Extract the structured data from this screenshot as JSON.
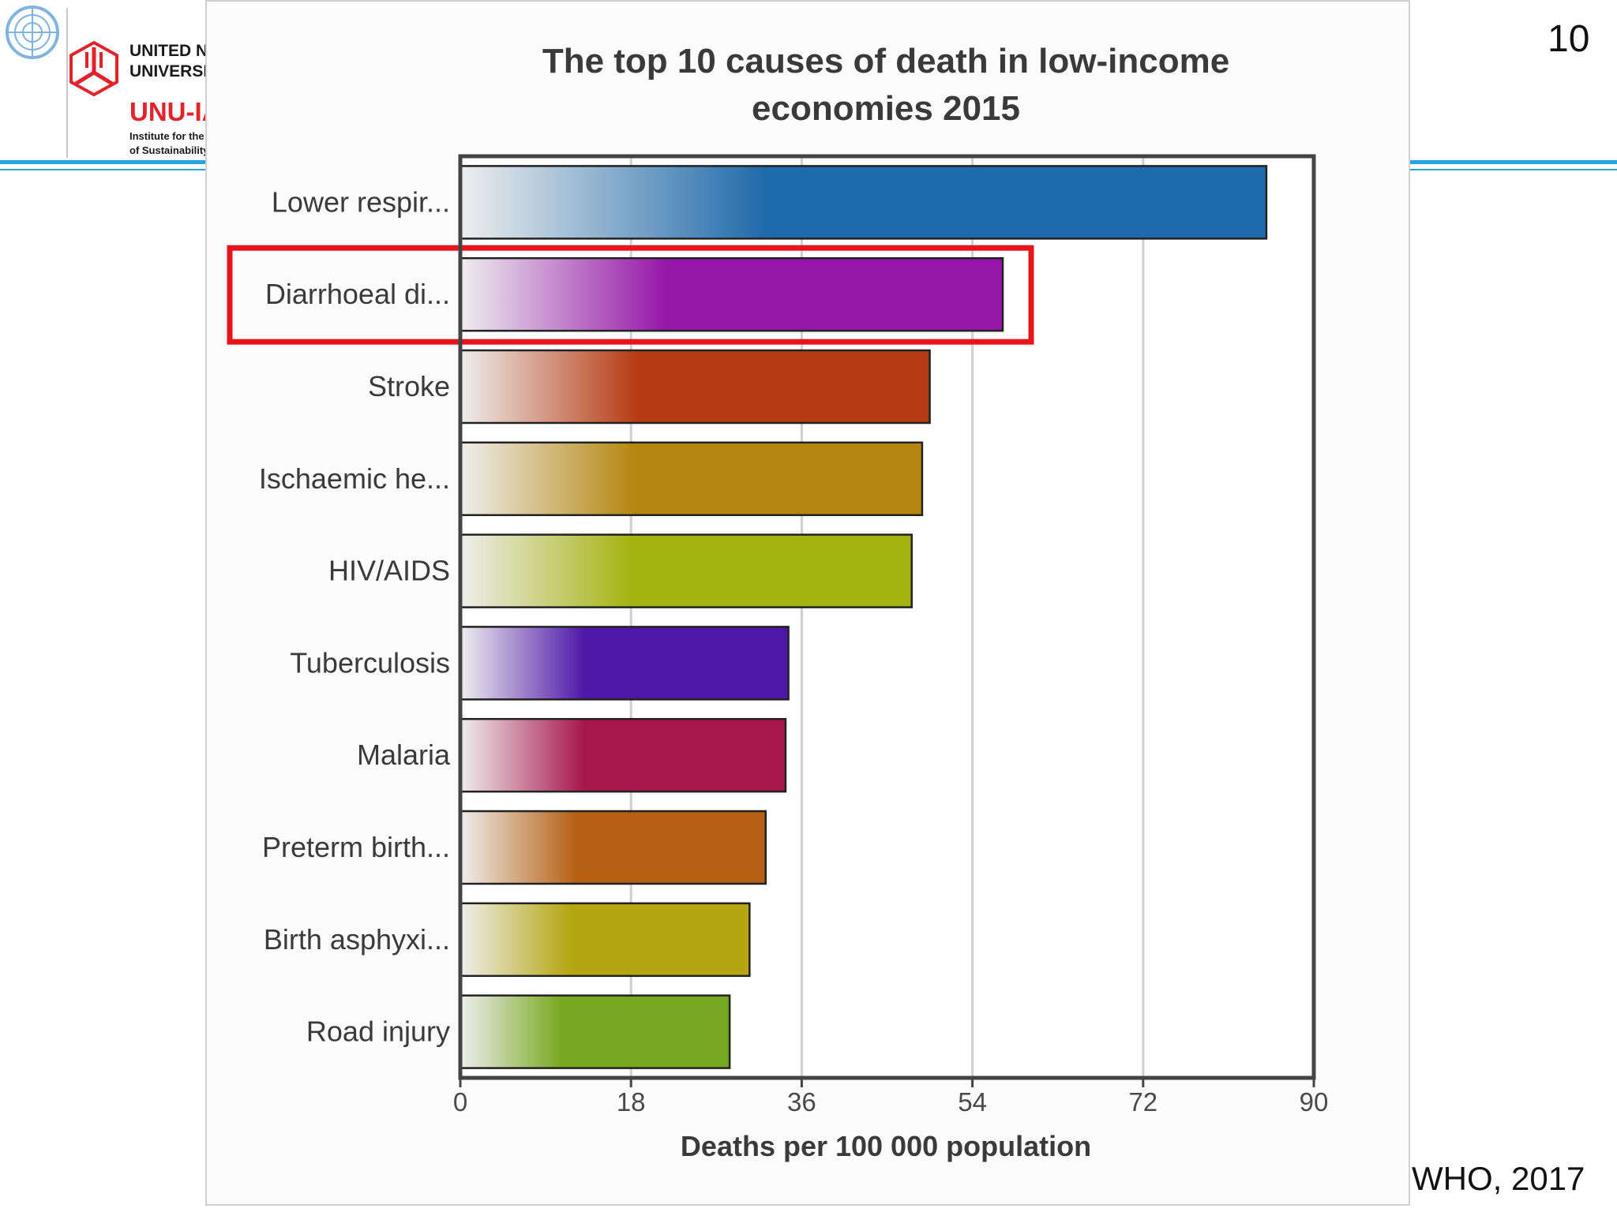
{
  "header": {
    "org_line1": "UNITED NATIONS",
    "org_line2": "UNIVERSITY",
    "org_unit": "UNU-IAS",
    "org_sub1": "Institute for the Advanced Study",
    "org_sub2": "of Sustainability",
    "page_number": "10",
    "accent_color": "#29a3dd"
  },
  "source": "WHO, 2017",
  "chart_data": {
    "type": "bar",
    "orientation": "horizontal",
    "title_line1": "The top 10 causes of death in low-income",
    "title_line2": "economies 2015",
    "xlabel": "Deaths per 100 000 population",
    "xlim": [
      0,
      90
    ],
    "xticks": [
      0,
      18,
      36,
      54,
      72,
      90
    ],
    "grid": true,
    "highlighted_category": "Diarrhoeal di...",
    "highlight_color": "#e8141c",
    "categories": [
      "Lower respir...",
      "Diarrhoeal di...",
      "Stroke",
      "Ischaemic he...",
      "HIV/AIDS",
      "Tuberculosis",
      "Malaria",
      "Preterm birth...",
      "Birth asphyxi...",
      "Road injury"
    ],
    "values": [
      85,
      57.2,
      49.5,
      48.7,
      47.6,
      34.6,
      34.3,
      32.2,
      30.5,
      28.4
    ],
    "colors": [
      "#1f6aaa",
      "#9517a8",
      "#b63a12",
      "#b5860f",
      "#a5b311",
      "#4e17a8",
      "#a8174a",
      "#b56012",
      "#b5a611",
      "#76a81f"
    ]
  }
}
